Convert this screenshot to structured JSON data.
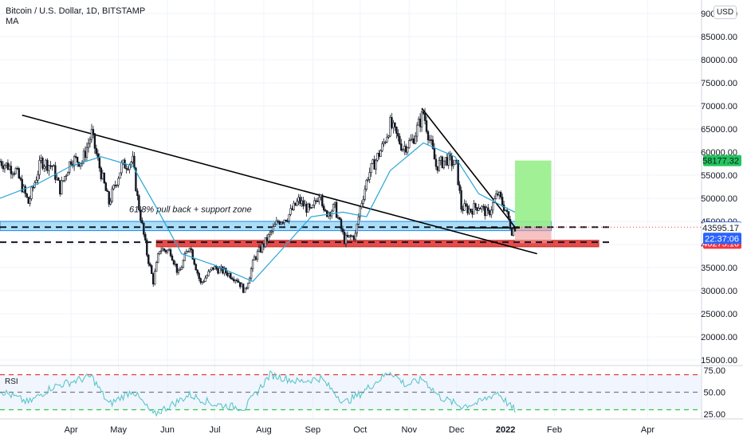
{
  "header": {
    "title": "Bitcoin / U.S. Dollar, 1D, BITSTAMP",
    "indicator": "MA"
  },
  "currency_button": "USD",
  "chart_data": {
    "type": "line",
    "title": "Bitcoin / U.S. Dollar, 1D, BITSTAMP",
    "ylim": [
      10000,
      92000
    ],
    "y_ticks": [
      15000,
      20000,
      25000,
      30000,
      35000,
      40000,
      45000,
      50000,
      55000,
      60000,
      65000,
      70000,
      75000,
      80000,
      85000,
      90000
    ],
    "y_tick_labels": [
      "15000.00",
      "20000.00",
      "25000.00",
      "30000.00",
      "35000.00",
      "40000.00",
      "45000.00",
      "50000.00",
      "55000.00",
      "60000.00",
      "65000.00",
      "70000.00",
      "75000.00",
      "80000.00",
      "85000.00",
      "90000.00"
    ],
    "x_months": [
      {
        "label": "Apr",
        "date": "2021-04-01"
      },
      {
        "label": "May",
        "date": "2021-05-01"
      },
      {
        "label": "Jun",
        "date": "2021-06-01"
      },
      {
        "label": "Jul",
        "date": "2021-07-01"
      },
      {
        "label": "Aug",
        "date": "2021-08-01"
      },
      {
        "label": "Sep",
        "date": "2021-09-01"
      },
      {
        "label": "Oct",
        "date": "2021-10-01"
      },
      {
        "label": "Nov",
        "date": "2021-11-01"
      },
      {
        "label": "Dec",
        "date": "2021-12-01"
      },
      {
        "label": "2022",
        "date": "2022-01-01"
      },
      {
        "label": "Feb",
        "date": "2022-02-01"
      },
      {
        "label": "Apr",
        "date": "2022-04-01"
      }
    ],
    "price_series": [
      {
        "date": "2021-02-15",
        "value": 58000
      },
      {
        "date": "2021-02-25",
        "value": 56000
      },
      {
        "date": "2021-03-05",
        "value": 49000
      },
      {
        "date": "2021-03-13",
        "value": 58000
      },
      {
        "date": "2021-03-20",
        "value": 57000
      },
      {
        "date": "2021-03-25",
        "value": 52000
      },
      {
        "date": "2021-04-01",
        "value": 58500
      },
      {
        "date": "2021-04-08",
        "value": 58000
      },
      {
        "date": "2021-04-14",
        "value": 64000
      },
      {
        "date": "2021-04-18",
        "value": 58000
      },
      {
        "date": "2021-04-25",
        "value": 49000
      },
      {
        "date": "2021-05-03",
        "value": 57000
      },
      {
        "date": "2021-05-10",
        "value": 58000
      },
      {
        "date": "2021-05-13",
        "value": 50000
      },
      {
        "date": "2021-05-19",
        "value": 38000
      },
      {
        "date": "2021-05-23",
        "value": 32000
      },
      {
        "date": "2021-05-27",
        "value": 39000
      },
      {
        "date": "2021-06-03",
        "value": 38500
      },
      {
        "date": "2021-06-08",
        "value": 33500
      },
      {
        "date": "2021-06-15",
        "value": 40000
      },
      {
        "date": "2021-06-22",
        "value": 31500
      },
      {
        "date": "2021-06-30",
        "value": 35000
      },
      {
        "date": "2021-07-08",
        "value": 34000
      },
      {
        "date": "2021-07-15",
        "value": 32500
      },
      {
        "date": "2021-07-20",
        "value": 29800
      },
      {
        "date": "2021-07-26",
        "value": 37000
      },
      {
        "date": "2021-08-01",
        "value": 40000
      },
      {
        "date": "2021-08-10",
        "value": 45000
      },
      {
        "date": "2021-08-16",
        "value": 46000
      },
      {
        "date": "2021-08-23",
        "value": 49500
      },
      {
        "date": "2021-08-31",
        "value": 47000
      },
      {
        "date": "2021-09-06",
        "value": 52000
      },
      {
        "date": "2021-09-08",
        "value": 46500
      },
      {
        "date": "2021-09-15",
        "value": 48000
      },
      {
        "date": "2021-09-21",
        "value": 41000
      },
      {
        "date": "2021-09-28",
        "value": 42000
      },
      {
        "date": "2021-10-01",
        "value": 48000
      },
      {
        "date": "2021-10-06",
        "value": 55000
      },
      {
        "date": "2021-10-15",
        "value": 61000
      },
      {
        "date": "2021-10-20",
        "value": 66000
      },
      {
        "date": "2021-10-28",
        "value": 61000
      },
      {
        "date": "2021-11-03",
        "value": 62500
      },
      {
        "date": "2021-11-10",
        "value": 68500
      },
      {
        "date": "2021-11-18",
        "value": 57000
      },
      {
        "date": "2021-11-25",
        "value": 58500
      },
      {
        "date": "2021-12-01",
        "value": 57000
      },
      {
        "date": "2021-12-04",
        "value": 48000
      },
      {
        "date": "2021-12-10",
        "value": 47500
      },
      {
        "date": "2021-12-15",
        "value": 48500
      },
      {
        "date": "2021-12-21",
        "value": 46500
      },
      {
        "date": "2021-12-27",
        "value": 51000
      },
      {
        "date": "2022-01-01",
        "value": 47500
      },
      {
        "date": "2022-01-05",
        "value": 43000
      },
      {
        "date": "2022-01-07",
        "value": 43745.7
      }
    ],
    "ma_series": [
      {
        "date": "2021-02-15",
        "value": 50000
      },
      {
        "date": "2021-03-10",
        "value": 53000
      },
      {
        "date": "2021-04-01",
        "value": 57000
      },
      {
        "date": "2021-04-20",
        "value": 59000
      },
      {
        "date": "2021-05-10",
        "value": 57000
      },
      {
        "date": "2021-05-25",
        "value": 48000
      },
      {
        "date": "2021-06-10",
        "value": 38000
      },
      {
        "date": "2021-07-01",
        "value": 35500
      },
      {
        "date": "2021-07-25",
        "value": 32000
      },
      {
        "date": "2021-08-10",
        "value": 38000
      },
      {
        "date": "2021-08-31",
        "value": 46000
      },
      {
        "date": "2021-09-20",
        "value": 47000
      },
      {
        "date": "2021-10-05",
        "value": 46000
      },
      {
        "date": "2021-10-20",
        "value": 56000
      },
      {
        "date": "2021-11-10",
        "value": 62000
      },
      {
        "date": "2021-11-30",
        "value": 59000
      },
      {
        "date": "2021-12-15",
        "value": 51000
      },
      {
        "date": "2022-01-01",
        "value": 48000
      },
      {
        "date": "2022-01-07",
        "value": 47000
      }
    ],
    "trendlines": [
      {
        "x1": "2021-03-01",
        "y1": 68000,
        "x2": "2022-01-21",
        "y2": 38000
      },
      {
        "x1": "2021-11-09",
        "y1": 69500,
        "x2": "2022-01-07",
        "y2": 43745.7
      },
      {
        "x1": "2021-11-30",
        "y1": 43600,
        "x2": "2022-01-10",
        "y2": 43600
      }
    ],
    "zones": [
      {
        "color": "#8fd3f5",
        "y_low": 43000,
        "y_high": 45000,
        "x_start": "2021-02-15",
        "x_end": "2022-01-30"
      },
      {
        "color": "#e53935",
        "y_low": 39500,
        "y_high": 40900,
        "x_start": "2021-05-25",
        "x_end": "2022-03-01"
      }
    ],
    "long_position": {
      "entry": 43745.7,
      "target": 58177.32,
      "stop": 40275.16,
      "x_start": "2022-01-07",
      "x_end": "2022-01-30"
    },
    "dashed_levels": [
      43745.7,
      40500
    ],
    "annotation": "61.8% pull back + support zone",
    "price_labels": [
      {
        "value": 58177.32,
        "text": "58177.32",
        "color": "#22c55e"
      },
      {
        "value": 43745.7,
        "text": "43745.70",
        "color": "#2962ff"
      },
      {
        "value": 43595.17,
        "text": "43595.17",
        "color": ""
      },
      {
        "value": 40275.16,
        "text": "40275.16",
        "color": "#f23645"
      }
    ],
    "countdown": "22:37:06",
    "rsi": {
      "label": "RSI",
      "ylim": [
        20,
        80
      ],
      "levels": [
        70,
        50,
        30
      ],
      "tick_labels": [
        "75.00",
        "50.00",
        "25.00"
      ],
      "tick_values": [
        75,
        50,
        25
      ],
      "values": [
        {
          "date": "2021-02-15",
          "value": 52
        },
        {
          "date": "2021-03-05",
          "value": 38
        },
        {
          "date": "2021-03-20",
          "value": 56
        },
        {
          "date": "2021-04-14",
          "value": 68
        },
        {
          "date": "2021-04-25",
          "value": 36
        },
        {
          "date": "2021-05-10",
          "value": 52
        },
        {
          "date": "2021-05-23",
          "value": 24
        },
        {
          "date": "2021-06-15",
          "value": 47
        },
        {
          "date": "2021-07-01",
          "value": 36
        },
        {
          "date": "2021-07-20",
          "value": 32
        },
        {
          "date": "2021-08-05",
          "value": 70
        },
        {
          "date": "2021-08-23",
          "value": 62
        },
        {
          "date": "2021-09-06",
          "value": 66
        },
        {
          "date": "2021-09-21",
          "value": 38
        },
        {
          "date": "2021-10-01",
          "value": 48
        },
        {
          "date": "2021-10-20",
          "value": 74
        },
        {
          "date": "2021-10-30",
          "value": 58
        },
        {
          "date": "2021-11-10",
          "value": 65
        },
        {
          "date": "2021-11-20",
          "value": 45
        },
        {
          "date": "2021-12-04",
          "value": 34
        },
        {
          "date": "2021-12-15",
          "value": 38
        },
        {
          "date": "2021-12-27",
          "value": 50
        },
        {
          "date": "2022-01-05",
          "value": 32
        },
        {
          "date": "2022-01-07",
          "value": 30
        }
      ]
    },
    "colors": {
      "ma": "#26a5d6",
      "rsi": "#4fc3c7",
      "candle_up": "#131722",
      "target_zone": "#98ee8a",
      "stop_zone": "#f19a9a"
    }
  }
}
